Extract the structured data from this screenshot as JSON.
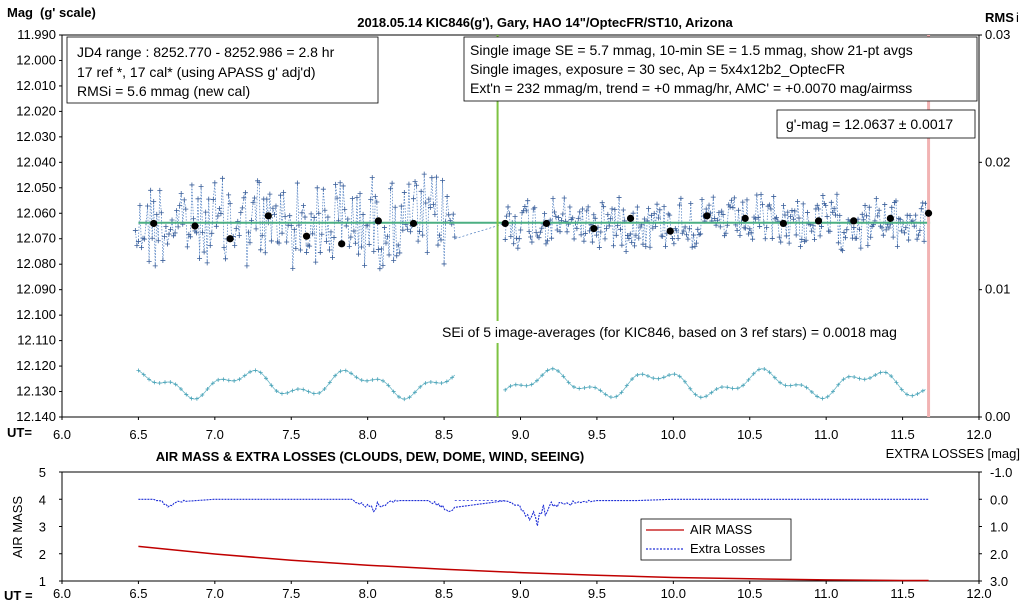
{
  "chart_data": [
    {
      "type": "scatter",
      "title": "2018.05.14  KIC846(g'),  Gary, HAO 14\"/OptecFR/ST10,  Arizona",
      "ylabel_left_main": "Mag",
      "ylabel_left_sub": "(g' scale)",
      "ylabel_right": "RMS",
      "ylabel_right_sub": "i",
      "xlabel": "UT=",
      "ylim": [
        12.14,
        11.99
      ],
      "y2lim": [
        0.0,
        0.03
      ],
      "xlim": [
        6.0,
        12.0
      ],
      "x_ticks": [
        "6.0",
        "6.5",
        "7.0",
        "7.5",
        "8.0",
        "8.5",
        "9.0",
        "9.5",
        "10.0",
        "10.5",
        "11.0",
        "11.5",
        "12.0"
      ],
      "y_ticks": [
        "11.990",
        "12.000",
        "12.010",
        "12.020",
        "12.030",
        "12.040",
        "12.050",
        "12.060",
        "12.070",
        "12.080",
        "12.090",
        "12.100",
        "12.110",
        "12.120",
        "12.130",
        "12.140"
      ],
      "y2_ticks": [
        "0.03",
        "0.02",
        "0.01",
        "0.00"
      ],
      "annotations": {
        "box1": [
          "JD4 range : 8252.770 - 8252.986 =  2.8  hr",
          "17 ref *, 17 cal* (using APASS g' adj'd)",
          "RMSi = 5.6 mmag (new cal)"
        ],
        "box2": [
          "Single image SE = 5.7 mmag, 10-min SE = 1.5 mmag, show  21-pt avgs",
          "Single images, exposure = 30 sec, Ap = 5x4x12b2_OptecFR",
          "Ext'n = 232 mmag/m, trend =  +0 mmag/hr, AMC' = +0.0070 mag/airmss"
        ],
        "gmag": "g'-mag = 12.0637 ± 0.0017",
        "sei": "SEi of 5 image-averages (for KIC846, based on 3 ref stars) = 0.0018  mag"
      },
      "mean_mag": 12.0637,
      "green_vertical_x": 8.85,
      "red_vertical_x": 11.67,
      "avg_points": {
        "x": [
          6.6,
          6.87,
          7.1,
          7.35,
          7.6,
          7.83,
          8.07,
          8.3,
          8.9,
          9.17,
          9.48,
          9.72,
          9.98,
          10.22,
          10.47,
          10.72,
          10.95,
          11.18,
          11.42,
          11.67
        ],
        "y": [
          12.064,
          12.065,
          12.07,
          12.061,
          12.069,
          12.072,
          12.063,
          12.064,
          12.064,
          12.064,
          12.066,
          12.062,
          12.067,
          12.061,
          12.062,
          12.064,
          12.063,
          12.063,
          12.062,
          12.06
        ]
      },
      "series": [
        {
          "name": "single images",
          "color": "#3a5f9a"
        },
        {
          "name": "RMSi",
          "color": "#4aa3b8"
        }
      ],
      "colors": {
        "line": "#4caf82",
        "green_line": "#7dc242",
        "red_line": "#f2b3b3",
        "dots": "#000000"
      }
    },
    {
      "type": "line",
      "title": "AIR MASS & EXTRA LOSSES (CLOUDS, DEW, DOME, WIND, SEEING)",
      "ylabel": "AIR MASS",
      "ylabel_right": "EXTRA LOSSES [mag]",
      "xlabel": "UT =",
      "xlim": [
        6.0,
        12.0
      ],
      "ylim": [
        1,
        5
      ],
      "y2lim": [
        3.0,
        -1.0
      ],
      "x_ticks": [
        "6.0",
        "6.5",
        "7.0",
        "7.5",
        "8.0",
        "8.5",
        "9.0",
        "9.5",
        "10.0",
        "10.5",
        "11.0",
        "11.5",
        "12.0"
      ],
      "y_ticks": [
        "5",
        "4",
        "3",
        "2",
        "1"
      ],
      "y2_ticks": [
        "-1.0",
        "0.0",
        "1.0",
        "2.0",
        "3.0"
      ],
      "legend": {
        "entries": [
          "AIR MASS",
          "Extra Losses"
        ],
        "position": "lower-right"
      },
      "series": [
        {
          "name": "AIR MASS",
          "color": "#c00000",
          "x": [
            6.5,
            7.0,
            7.5,
            8.0,
            8.5,
            9.0,
            9.5,
            10.0,
            10.5,
            11.0,
            11.5,
            11.67
          ],
          "values": [
            2.27,
            1.99,
            1.76,
            1.58,
            1.43,
            1.31,
            1.21,
            1.13,
            1.08,
            1.04,
            1.02,
            1.02
          ]
        },
        {
          "name": "Extra Losses",
          "color": "#1f2fd6",
          "x": [
            6.5,
            6.6,
            6.7,
            6.75,
            7.0,
            7.5,
            7.9,
            8.0,
            8.2,
            8.4,
            8.5,
            8.9,
            9.0,
            9.1,
            9.2,
            9.5,
            9.75,
            10.0,
            10.5,
            11.0,
            11.5,
            11.67
          ],
          "values": [
            0.0,
            0.0,
            0.3,
            0.1,
            0.0,
            0.0,
            0.0,
            0.5,
            0.05,
            0.05,
            0.5,
            0.05,
            0.5,
            0.9,
            0.3,
            0.05,
            0.05,
            0.0,
            0.0,
            0.0,
            0.0,
            0.0
          ]
        }
      ]
    }
  ]
}
